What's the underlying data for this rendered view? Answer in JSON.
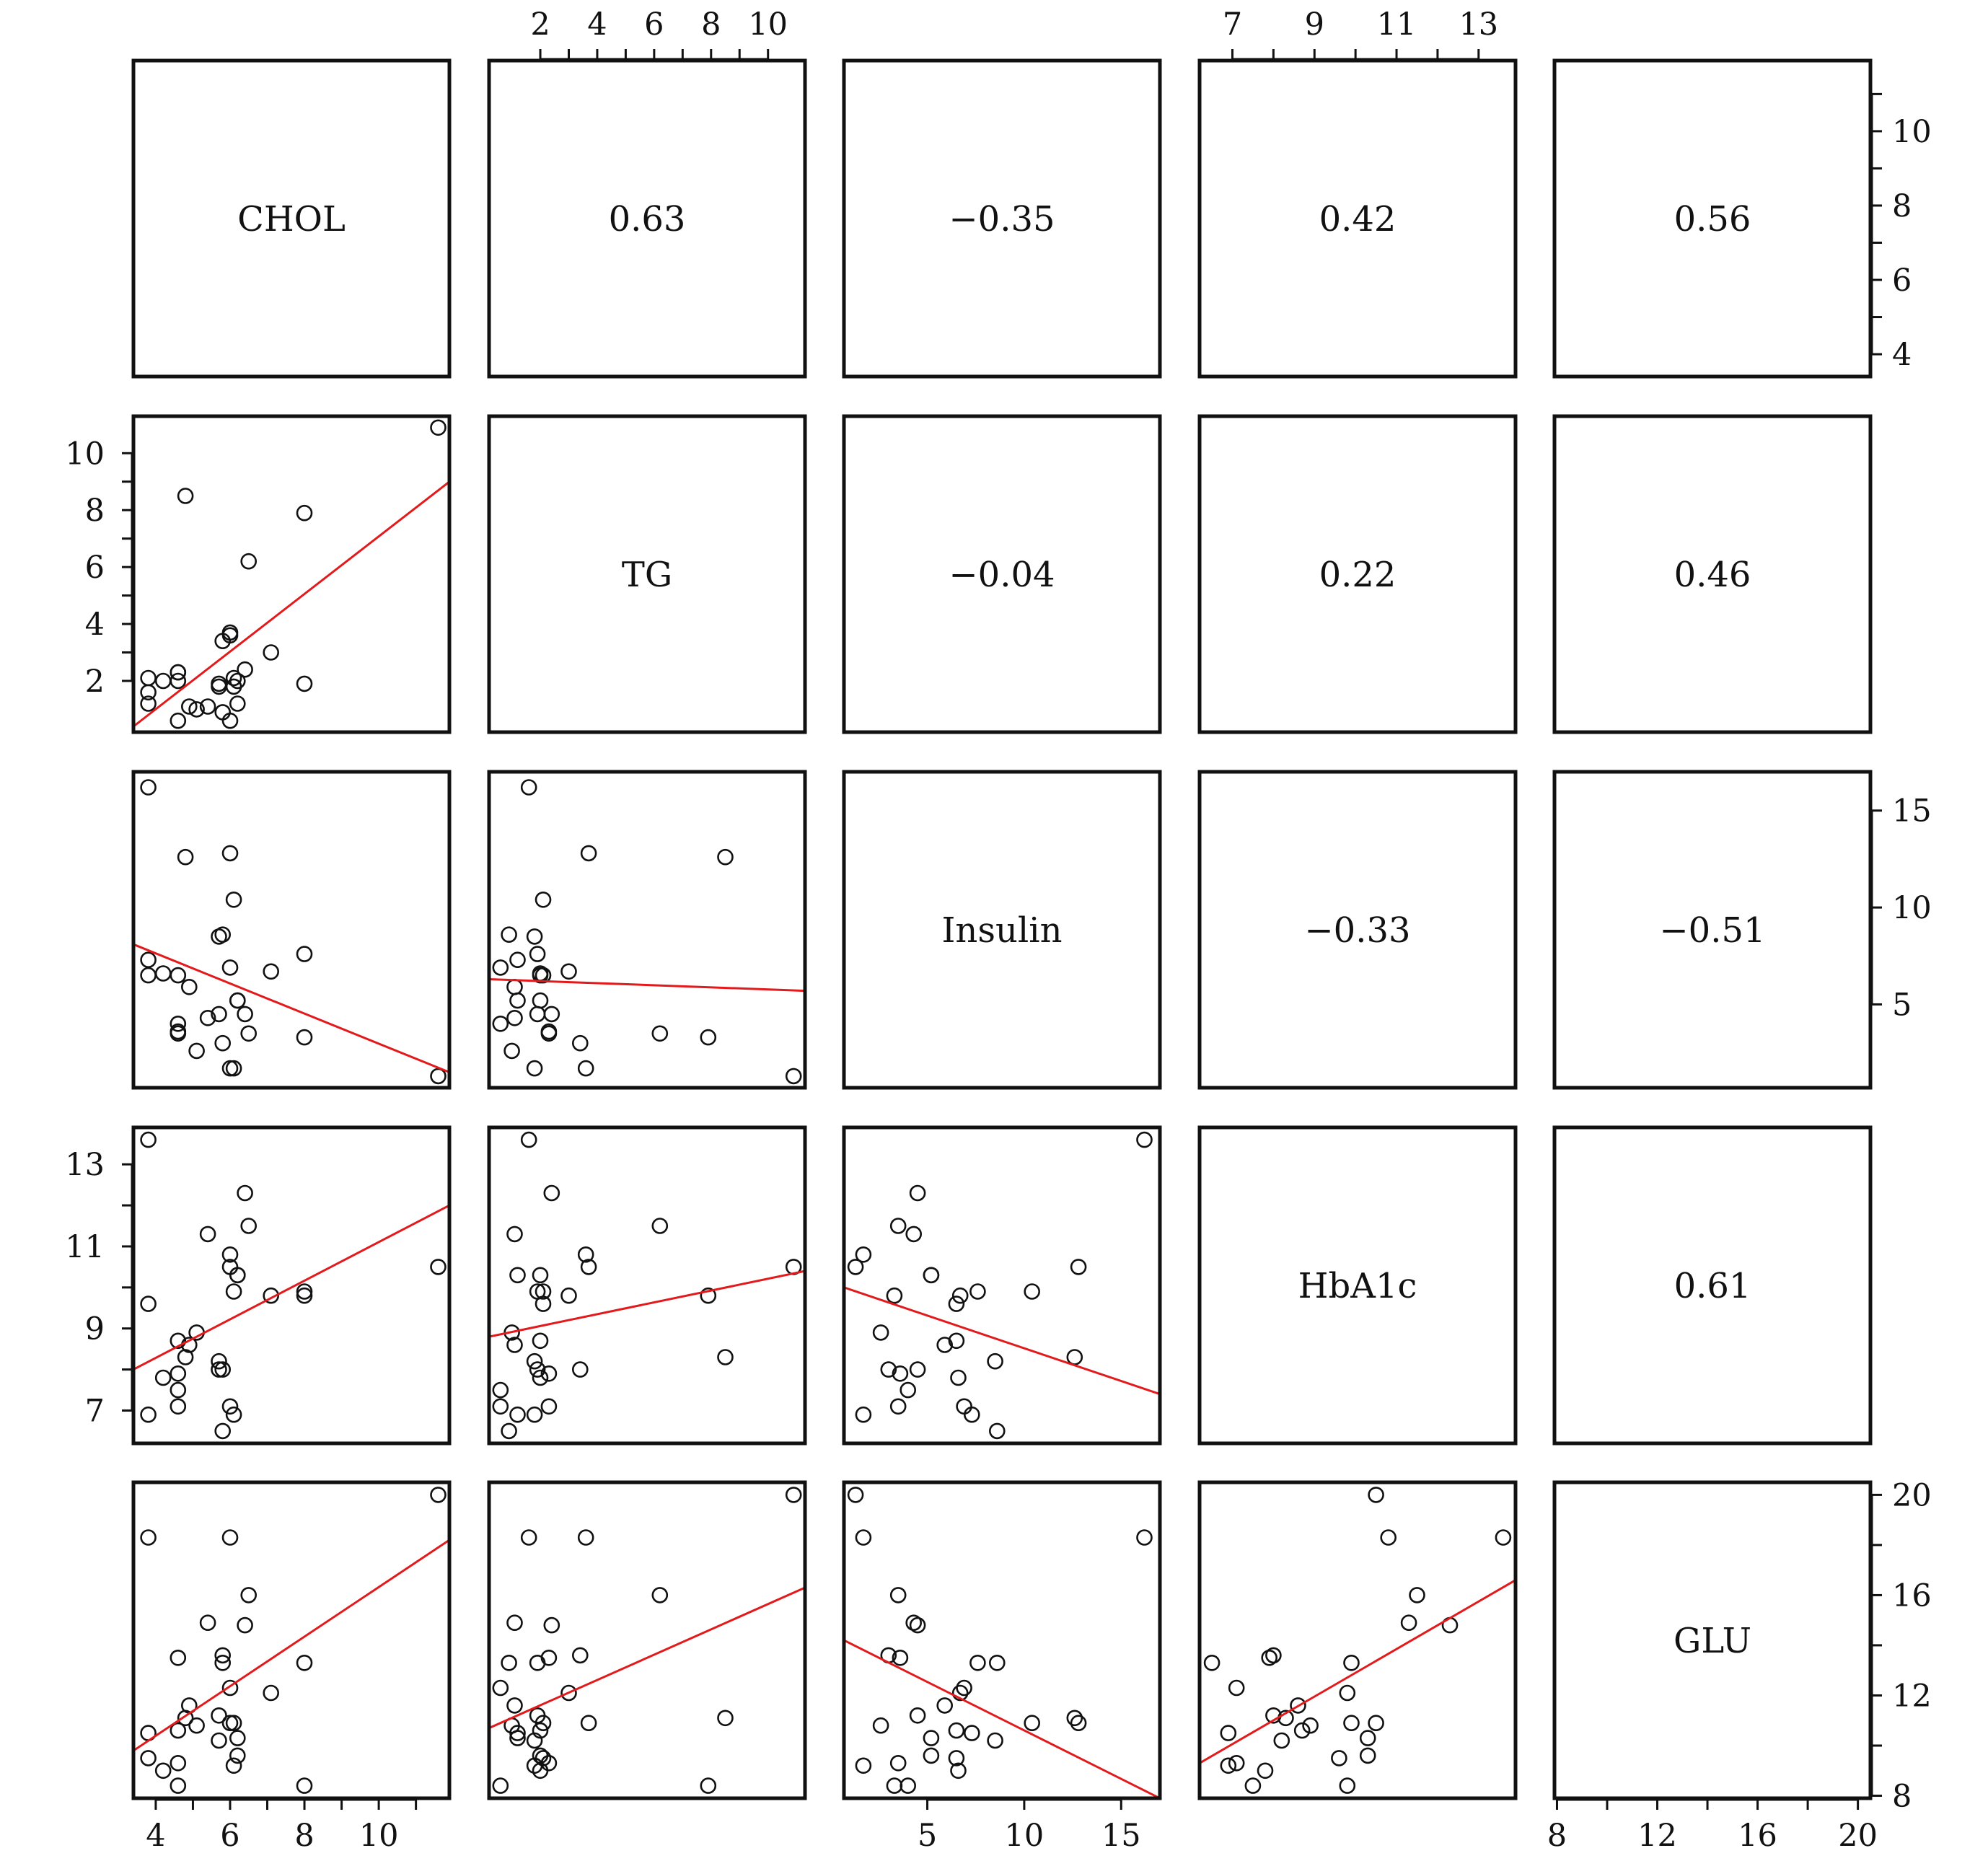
{
  "colors": {
    "frame": "#111111",
    "point": "#111111",
    "fit_line": "#e31a1c",
    "background": "#ffffff"
  },
  "chart_data": {
    "type": "scatter",
    "variables": [
      "CHOL",
      "TG",
      "Insulin",
      "HbA1c",
      "GLU"
    ],
    "correlations": [
      [
        "",
        "0.63",
        "−0.35",
        "0.42",
        "0.56"
      ],
      [
        "",
        "",
        "−0.04",
        "0.22",
        "0.46"
      ],
      [
        "",
        "",
        "",
        "−0.33",
        "−0.51"
      ],
      [
        "",
        "",
        "",
        "",
        "0.61"
      ],
      [
        "",
        "",
        "",
        "",
        ""
      ]
    ],
    "ranges": {
      "CHOL": [
        3.4,
        11.9
      ],
      "TG": [
        0.2,
        11.3
      ],
      "Insulin": [
        0.7,
        17.0
      ],
      "HbA1c": [
        6.2,
        13.9
      ],
      "GLU": [
        7.9,
        20.5
      ]
    },
    "ticks": {
      "CHOL": [
        4,
        6,
        8,
        10
      ],
      "TG": [
        2,
        4,
        6,
        8,
        10
      ],
      "Insulin": [
        5,
        10,
        15
      ],
      "HbA1c": [
        7,
        9,
        11,
        13
      ],
      "GLU": [
        8,
        12,
        16,
        20
      ]
    },
    "minor_ticks": {
      "CHOL": [
        5,
        7,
        9,
        11
      ],
      "TG": [
        3,
        5,
        7,
        9
      ],
      "Insulin": [],
      "HbA1c": [
        8,
        10,
        12
      ],
      "GLU": [
        10,
        14,
        18
      ]
    },
    "axis_placement": {
      "bottom": [
        "CHOL",
        "Insulin",
        "GLU"
      ],
      "top": [
        "TG",
        "HbA1c"
      ],
      "left": [
        "TG",
        "HbA1c"
      ],
      "right": [
        "CHOL",
        "Insulin",
        "GLU"
      ]
    },
    "observations": {
      "CHOL": [
        3.8,
        3.8,
        3.8,
        4.2,
        4.6,
        4.6,
        4.6,
        4.6,
        4.8,
        4.9,
        5.1,
        5.4,
        5.7,
        5.7,
        5.8,
        5.8,
        6.0,
        6.0,
        6.0,
        6.1,
        6.1,
        6.2,
        6.2,
        6.4,
        6.5,
        7.1,
        8.0,
        8.0,
        11.6
      ],
      "TG": [
        1.6,
        2.1,
        1.2,
        2.0,
        2.3,
        2.0,
        0.6,
        2.3,
        8.5,
        1.1,
        1.0,
        1.1,
        1.8,
        1.9,
        3.4,
        0.9,
        3.6,
        0.6,
        3.7,
        2.1,
        1.8,
        2.0,
        1.2,
        2.4,
        6.2,
        3.0,
        1.9,
        7.9,
        10.9
      ],
      "Insulin": [
        16.2,
        6.5,
        7.3,
        6.6,
        3.6,
        6.5,
        4.0,
        3.5,
        12.6,
        5.9,
        2.6,
        4.3,
        8.5,
        4.5,
        3.0,
        8.6,
        1.7,
        6.9,
        12.8,
        10.4,
        1.7,
        5.2,
        5.2,
        4.5,
        3.5,
        6.7,
        7.6,
        3.3,
        1.3
      ],
      "HbA1c": [
        13.6,
        9.6,
        6.9,
        7.8,
        7.9,
        8.7,
        7.5,
        7.1,
        8.3,
        8.6,
        8.9,
        11.3,
        8.2,
        8.0,
        8.0,
        6.5,
        10.8,
        7.1,
        10.5,
        9.9,
        6.9,
        10.3,
        10.3,
        12.3,
        11.5,
        9.8,
        9.9,
        9.8,
        10.5
      ],
      "GLU": [
        18.3,
        9.5,
        10.5,
        9.0,
        13.5,
        10.6,
        8.4,
        9.3,
        11.1,
        11.6,
        10.8,
        14.9,
        10.2,
        11.2,
        13.6,
        13.3,
        18.3,
        12.3,
        10.9,
        10.9,
        9.2,
        9.6,
        10.3,
        14.8,
        16.0,
        12.1,
        13.3,
        8.4,
        20.0
      ]
    },
    "fit_lines": {
      "TG~CHOL": [
        [
          3.4,
          0.4
        ],
        [
          11.9,
          9.0
        ]
      ],
      "Insulin~CHOL": [
        [
          3.4,
          8.1
        ],
        [
          11.9,
          1.5
        ]
      ],
      "Insulin~TG": [
        [
          0.2,
          6.3
        ],
        [
          11.3,
          5.7
        ]
      ],
      "HbA1c~CHOL": [
        [
          3.4,
          8.0
        ],
        [
          11.9,
          12.0
        ]
      ],
      "HbA1c~TG": [
        [
          0.2,
          8.8
        ],
        [
          11.3,
          10.4
        ]
      ],
      "HbA1c~Insulin": [
        [
          0.7,
          10.0
        ],
        [
          17.0,
          7.4
        ]
      ],
      "GLU~CHOL": [
        [
          3.4,
          9.8
        ],
        [
          11.9,
          18.2
        ]
      ],
      "GLU~TG": [
        [
          0.2,
          10.7
        ],
        [
          11.3,
          16.3
        ]
      ],
      "GLU~Insulin": [
        [
          0.7,
          14.2
        ],
        [
          17.0,
          7.9
        ]
      ],
      "GLU~HbA1c": [
        [
          6.2,
          9.3
        ],
        [
          13.9,
          16.6
        ]
      ]
    },
    "grid": false,
    "legend": "none",
    "title": ""
  }
}
